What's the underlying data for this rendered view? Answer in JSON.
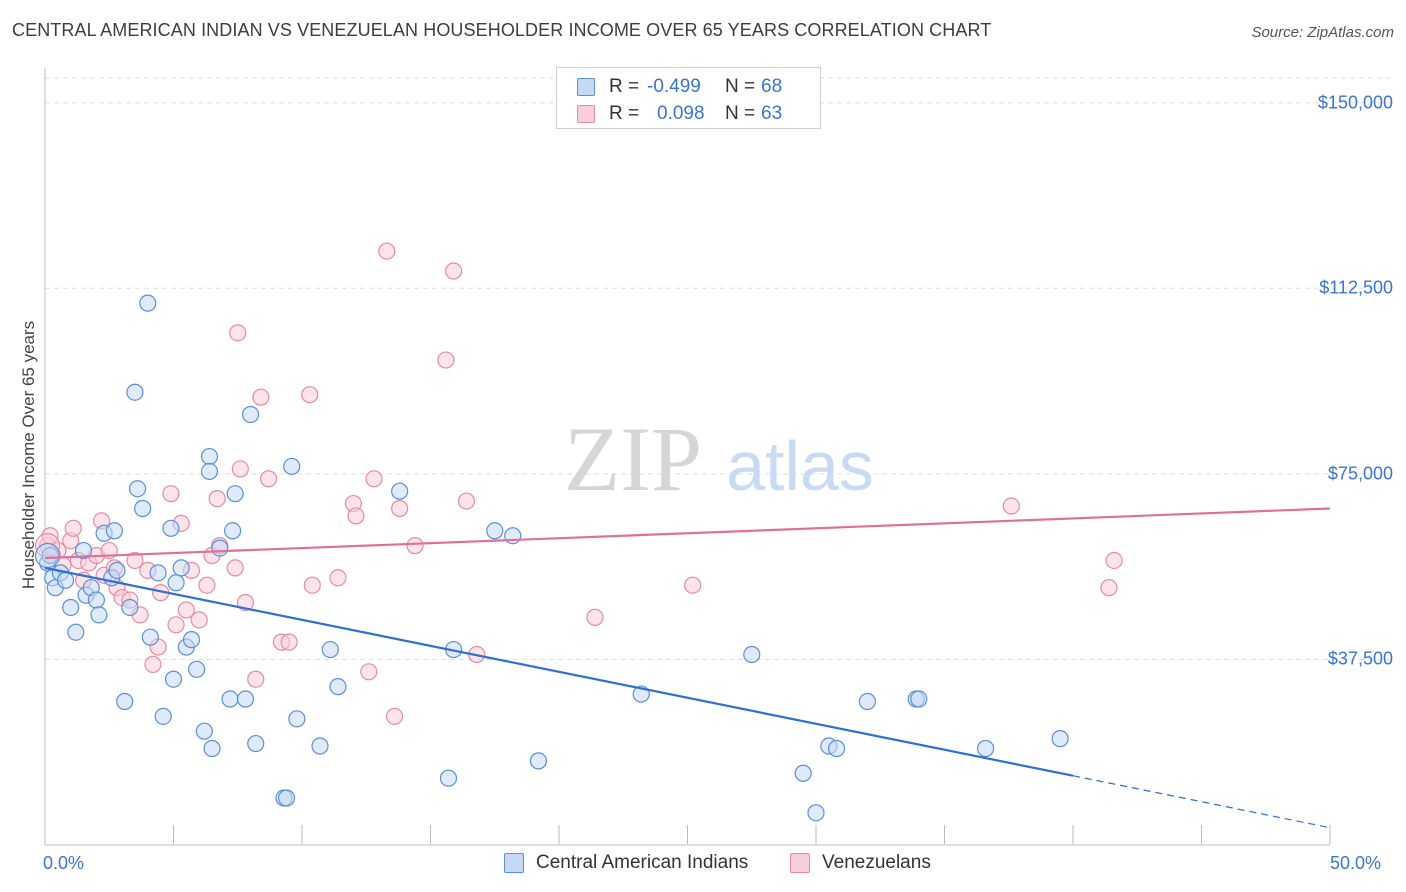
{
  "title": "CENTRAL AMERICAN INDIAN VS VENEZUELAN HOUSEHOLDER INCOME OVER 65 YEARS CORRELATION CHART",
  "source": "Source: ZipAtlas.com",
  "watermark": {
    "zip": "ZIP",
    "atlas": "atlas"
  },
  "legend": {
    "r_label": "R =",
    "n_label": "N =",
    "rows": [
      {
        "r": "-0.499",
        "n": "68"
      },
      {
        "r": "0.098",
        "n": "63"
      }
    ]
  },
  "colors": {
    "blue_fill": "#c5d9f5",
    "blue_stroke": "#5b8fd8",
    "blue_line": "#2f6fd6",
    "pink_fill": "#f9cdd9",
    "pink_stroke": "#e78aa5",
    "pink_line": "#e0709a",
    "accent_text": "#3b74d0",
    "grid": "#dddddd"
  },
  "chart_data": {
    "type": "scatter",
    "title": "CENTRAL AMERICAN INDIAN VS VENEZUELAN HOUSEHOLDER INCOME OVER 65 YEARS CORRELATION CHART",
    "xlabel": "",
    "ylabel": "Householder Income Over 65 years",
    "xlim": [
      0,
      50
    ],
    "ylim": [
      0,
      155000
    ],
    "x_tick_labels": [
      "0.0%",
      "50.0%"
    ],
    "y_ticks": [
      {
        "value": 37500,
        "label": "$37,500"
      },
      {
        "value": 75000,
        "label": "$75,000"
      },
      {
        "value": 112500,
        "label": "$112,500"
      },
      {
        "value": 150000,
        "label": "$150,000"
      }
    ],
    "legend_position": "bottom",
    "series": [
      {
        "name": "Central American Indians",
        "color": "blue",
        "r": -0.499,
        "n": 68,
        "trend": {
          "x0": 0,
          "y0": 56000,
          "x1": 40,
          "y1": 14000,
          "dashed_to_x": 50,
          "dashed_to_y": 3500
        },
        "points": [
          [
            0.1,
            57000
          ],
          [
            0.2,
            58500
          ],
          [
            0.3,
            54000
          ],
          [
            0.4,
            52000
          ],
          [
            0.6,
            55000
          ],
          [
            0.8,
            53500
          ],
          [
            1.0,
            48000
          ],
          [
            1.2,
            43000
          ],
          [
            1.5,
            59500
          ],
          [
            1.6,
            50500
          ],
          [
            1.8,
            52000
          ],
          [
            2.0,
            49500
          ],
          [
            2.1,
            46500
          ],
          [
            2.3,
            63000
          ],
          [
            2.6,
            54000
          ],
          [
            2.7,
            63500
          ],
          [
            2.8,
            55500
          ],
          [
            3.1,
            29000
          ],
          [
            3.3,
            48000
          ],
          [
            3.5,
            91500
          ],
          [
            3.6,
            72000
          ],
          [
            3.8,
            68000
          ],
          [
            4.0,
            109500
          ],
          [
            4.1,
            42000
          ],
          [
            4.4,
            55000
          ],
          [
            4.6,
            26000
          ],
          [
            4.9,
            64000
          ],
          [
            5.0,
            33500
          ],
          [
            5.1,
            53000
          ],
          [
            5.3,
            56000
          ],
          [
            5.5,
            40000
          ],
          [
            5.7,
            41500
          ],
          [
            5.9,
            35500
          ],
          [
            6.2,
            23000
          ],
          [
            6.4,
            78500
          ],
          [
            6.4,
            75500
          ],
          [
            6.5,
            19500
          ],
          [
            6.8,
            60000
          ],
          [
            7.2,
            29500
          ],
          [
            7.3,
            63500
          ],
          [
            7.4,
            71000
          ],
          [
            7.8,
            29500
          ],
          [
            8.0,
            87000
          ],
          [
            8.2,
            20500
          ],
          [
            9.3,
            9500
          ],
          [
            9.6,
            76500
          ],
          [
            9.8,
            25500
          ],
          [
            10.7,
            20000
          ],
          [
            11.1,
            39500
          ],
          [
            11.4,
            32000
          ],
          [
            13.8,
            71500
          ],
          [
            15.7,
            13500
          ],
          [
            15.9,
            39500
          ],
          [
            17.5,
            63500
          ],
          [
            18.2,
            62500
          ],
          [
            19.2,
            17000
          ],
          [
            23.2,
            30500
          ],
          [
            27.5,
            38500
          ],
          [
            29.5,
            14500
          ],
          [
            30.0,
            6500
          ],
          [
            30.5,
            20000
          ],
          [
            30.8,
            19500
          ],
          [
            32.0,
            29000
          ],
          [
            33.9,
            29500
          ],
          [
            34.0,
            29500
          ],
          [
            36.6,
            19500
          ],
          [
            39.5,
            21500
          ],
          [
            9.4,
            9500
          ]
        ]
      },
      {
        "name": "Venezuelans",
        "color": "pink",
        "r": 0.098,
        "n": 63,
        "trend": {
          "x0": 0,
          "y0": 58000,
          "x1": 50,
          "y1": 68000
        },
        "points": [
          [
            0.1,
            60500
          ],
          [
            0.2,
            62500
          ],
          [
            0.3,
            58500
          ],
          [
            0.5,
            59500
          ],
          [
            0.7,
            56500
          ],
          [
            1.0,
            61500
          ],
          [
            1.1,
            64000
          ],
          [
            1.3,
            57500
          ],
          [
            1.5,
            53500
          ],
          [
            1.7,
            57000
          ],
          [
            2.0,
            58500
          ],
          [
            2.2,
            65500
          ],
          [
            2.3,
            54500
          ],
          [
            2.5,
            59500
          ],
          [
            2.7,
            56000
          ],
          [
            2.8,
            52000
          ],
          [
            3.0,
            50000
          ],
          [
            3.3,
            49500
          ],
          [
            3.5,
            57500
          ],
          [
            3.7,
            46500
          ],
          [
            4.0,
            55500
          ],
          [
            4.2,
            36500
          ],
          [
            4.4,
            40000
          ],
          [
            4.5,
            51000
          ],
          [
            4.9,
            71000
          ],
          [
            5.1,
            44500
          ],
          [
            5.3,
            65000
          ],
          [
            5.5,
            47500
          ],
          [
            5.7,
            55500
          ],
          [
            6.0,
            45500
          ],
          [
            6.3,
            52500
          ],
          [
            6.5,
            58500
          ],
          [
            6.7,
            70000
          ],
          [
            6.8,
            60500
          ],
          [
            7.4,
            56000
          ],
          [
            7.5,
            103500
          ],
          [
            7.6,
            76000
          ],
          [
            7.8,
            49000
          ],
          [
            8.2,
            33500
          ],
          [
            8.4,
            90500
          ],
          [
            8.7,
            74000
          ],
          [
            9.2,
            41000
          ],
          [
            9.5,
            41000
          ],
          [
            10.3,
            91000
          ],
          [
            10.4,
            52500
          ],
          [
            11.4,
            54000
          ],
          [
            12.0,
            69000
          ],
          [
            12.1,
            66500
          ],
          [
            12.6,
            35000
          ],
          [
            12.8,
            74000
          ],
          [
            13.3,
            120000
          ],
          [
            13.6,
            26000
          ],
          [
            13.8,
            68000
          ],
          [
            14.4,
            60500
          ],
          [
            15.6,
            98000
          ],
          [
            15.9,
            116000
          ],
          [
            16.4,
            69500
          ],
          [
            16.8,
            38500
          ],
          [
            21.4,
            46000
          ],
          [
            25.2,
            52500
          ],
          [
            37.6,
            68500
          ],
          [
            41.4,
            52000
          ],
          [
            41.6,
            57500
          ]
        ]
      }
    ]
  }
}
